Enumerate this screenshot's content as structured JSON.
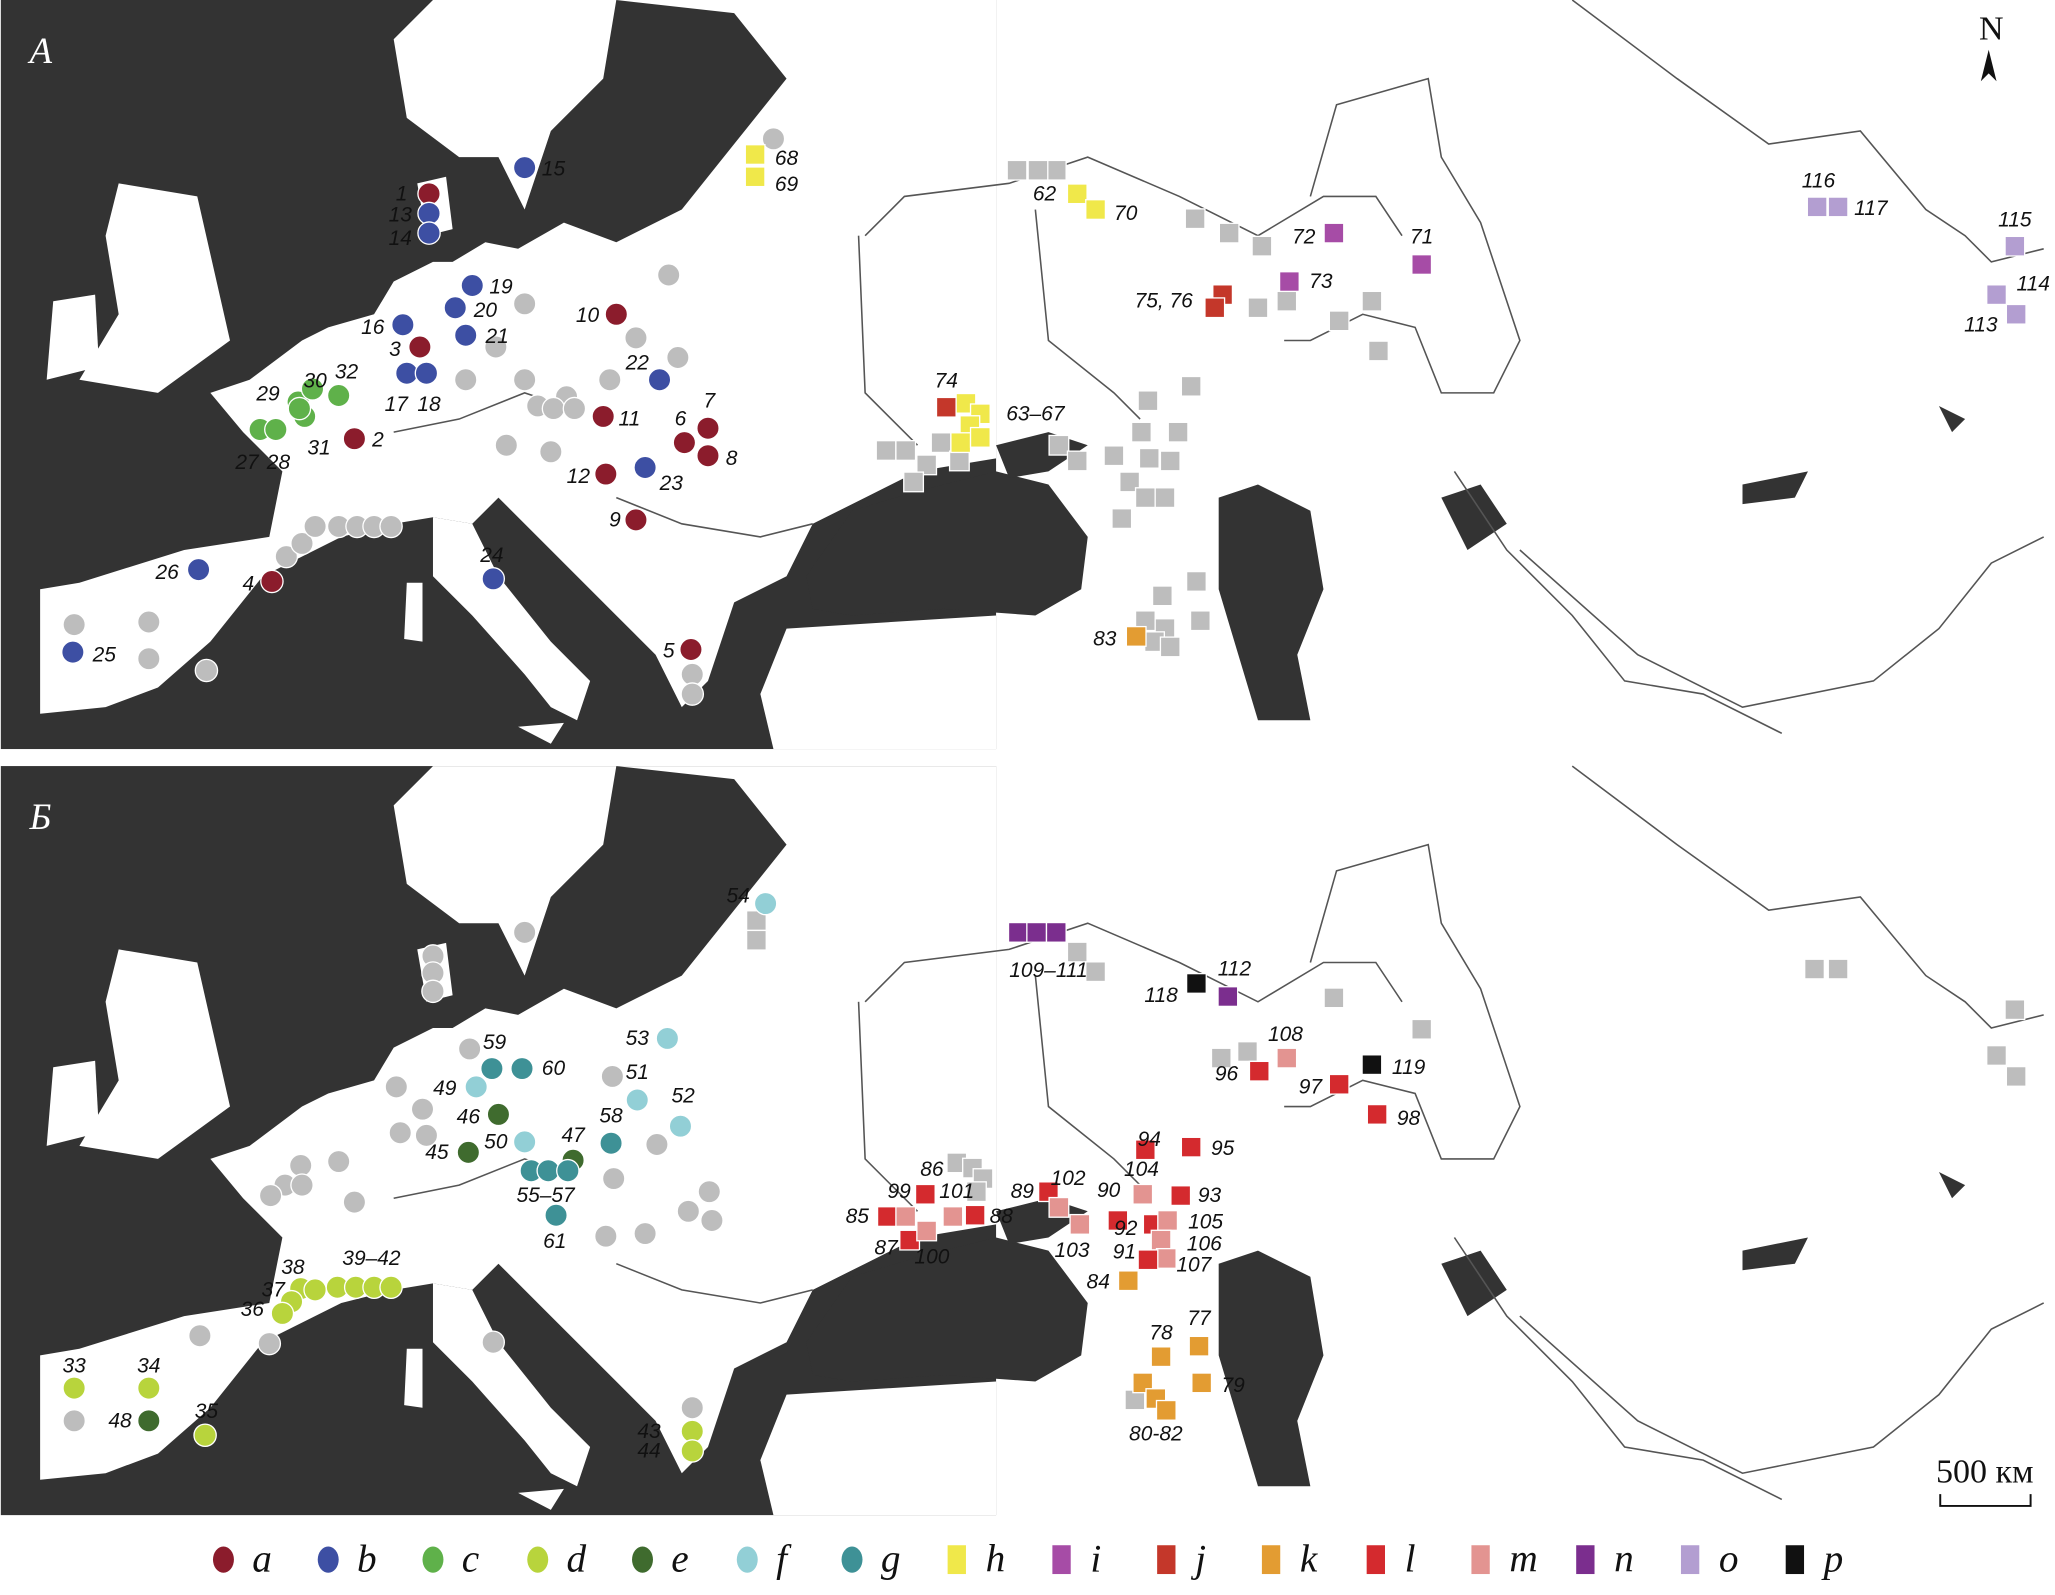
{
  "north_label": "N",
  "scale_label": "500 км",
  "unclassified_color": "#bdbdbd",
  "sea_color": "#333333",
  "legend": [
    {
      "key": "a",
      "shape": "circle",
      "color": "#8b1c2c"
    },
    {
      "key": "b",
      "shape": "circle",
      "color": "#3d4fa3"
    },
    {
      "key": "c",
      "shape": "circle",
      "color": "#5fb14a"
    },
    {
      "key": "d",
      "shape": "circle",
      "color": "#b8d43c"
    },
    {
      "key": "e",
      "shape": "circle",
      "color": "#3f6b2e"
    },
    {
      "key": "f",
      "shape": "circle",
      "color": "#92cfd6"
    },
    {
      "key": "g",
      "shape": "circle",
      "color": "#3e9196"
    },
    {
      "key": "h",
      "shape": "square",
      "color": "#f0e84a"
    },
    {
      "key": "i",
      "shape": "square",
      "color": "#a64ca6"
    },
    {
      "key": "j",
      "shape": "square",
      "color": "#c4372a"
    },
    {
      "key": "k",
      "shape": "square",
      "color": "#e39c32"
    },
    {
      "key": "l",
      "shape": "square",
      "color": "#d42a2e"
    },
    {
      "key": "m",
      "shape": "square",
      "color": "#e39491"
    },
    {
      "key": "n",
      "shape": "square",
      "color": "#7b2e8e"
    },
    {
      "key": "o",
      "shape": "square",
      "color": "#b39ed1"
    },
    {
      "key": "p",
      "shape": "square",
      "color": "#111111"
    }
  ],
  "panels": [
    {
      "letter": "А",
      "sites": [
        {
          "label": "1",
          "category": "a"
        },
        {
          "label": "13",
          "category": "b"
        },
        {
          "label": "14",
          "category": "b"
        },
        {
          "label": "15",
          "category": "b"
        },
        {
          "label": "19",
          "category": "b"
        },
        {
          "label": "20",
          "category": "b"
        },
        {
          "label": "21",
          "category": "b"
        },
        {
          "label": "16",
          "category": "b"
        },
        {
          "label": "3",
          "category": "a"
        },
        {
          "label": "17",
          "category": "b"
        },
        {
          "label": "18",
          "category": "b"
        },
        {
          "label": "29",
          "category": "c"
        },
        {
          "label": "30",
          "category": "c"
        },
        {
          "label": "32",
          "category": "c"
        },
        {
          "label": "27",
          "category": "c"
        },
        {
          "label": "28",
          "category": "c"
        },
        {
          "label": "31",
          "category": "c"
        },
        {
          "label": "2",
          "category": "a"
        },
        {
          "label": "10",
          "category": "a"
        },
        {
          "label": "22",
          "category": "b"
        },
        {
          "label": "11",
          "category": "a"
        },
        {
          "label": "7",
          "category": "a"
        },
        {
          "label": "6",
          "category": "a"
        },
        {
          "label": "8",
          "category": "a"
        },
        {
          "label": "12",
          "category": "a"
        },
        {
          "label": "23",
          "category": "b"
        },
        {
          "label": "9",
          "category": "a"
        },
        {
          "label": "24",
          "category": "b"
        },
        {
          "label": "26",
          "category": "b"
        },
        {
          "label": "4",
          "category": "a"
        },
        {
          "label": "25",
          "category": "b"
        },
        {
          "label": "5",
          "category": "a"
        },
        {
          "label": "68",
          "category": "h"
        },
        {
          "label": "69",
          "category": "h"
        },
        {
          "label": "62",
          "category": "unclassified"
        },
        {
          "label": "70",
          "category": "h"
        },
        {
          "label": "72",
          "category": "i"
        },
        {
          "label": "71",
          "category": "i"
        },
        {
          "label": "73",
          "category": "i"
        },
        {
          "label": "75, 76",
          "category": "j"
        },
        {
          "label": "74",
          "category": "j"
        },
        {
          "label": "63–67",
          "category": "h"
        },
        {
          "label": "83",
          "category": "k"
        },
        {
          "label": "116",
          "category": "o"
        },
        {
          "label": "117",
          "category": "o"
        },
        {
          "label": "115",
          "category": "o"
        },
        {
          "label": "114",
          "category": "o"
        },
        {
          "label": "113",
          "category": "o"
        }
      ]
    },
    {
      "letter": "Б",
      "sites": [
        {
          "label": "54",
          "category": "f"
        },
        {
          "label": "109–111",
          "category": "n"
        },
        {
          "label": "118",
          "category": "p"
        },
        {
          "label": "112",
          "category": "n"
        },
        {
          "label": "108",
          "category": "m"
        },
        {
          "label": "96",
          "category": "l"
        },
        {
          "label": "97",
          "category": "l"
        },
        {
          "label": "119",
          "category": "p"
        },
        {
          "label": "98",
          "category": "l"
        },
        {
          "label": "59",
          "category": "g"
        },
        {
          "label": "60",
          "category": "g"
        },
        {
          "label": "49",
          "category": "f"
        },
        {
          "label": "46",
          "category": "e"
        },
        {
          "label": "53",
          "category": "f"
        },
        {
          "label": "51",
          "category": "f"
        },
        {
          "label": "52",
          "category": "f"
        },
        {
          "label": "58",
          "category": "g"
        },
        {
          "label": "45",
          "category": "e"
        },
        {
          "label": "50",
          "category": "f"
        },
        {
          "label": "47",
          "category": "e"
        },
        {
          "label": "55–57",
          "category": "g"
        },
        {
          "label": "61",
          "category": "g"
        },
        {
          "label": "38",
          "category": "d"
        },
        {
          "label": "39–42",
          "category": "d"
        },
        {
          "label": "37",
          "category": "d"
        },
        {
          "label": "36",
          "category": "d"
        },
        {
          "label": "33",
          "category": "d"
        },
        {
          "label": "34",
          "category": "d"
        },
        {
          "label": "48",
          "category": "e"
        },
        {
          "label": "35",
          "category": "d"
        },
        {
          "label": "43",
          "category": "d"
        },
        {
          "label": "44",
          "category": "d"
        },
        {
          "label": "86",
          "category": "unclassified"
        },
        {
          "label": "99",
          "category": "l"
        },
        {
          "label": "101",
          "category": "m"
        },
        {
          "label": "85",
          "category": "l"
        },
        {
          "label": "87",
          "category": "l"
        },
        {
          "label": "88",
          "category": "l"
        },
        {
          "label": "100",
          "category": "m"
        },
        {
          "label": "89",
          "category": "l"
        },
        {
          "label": "102",
          "category": "m"
        },
        {
          "label": "103",
          "category": "m"
        },
        {
          "label": "90",
          "category": "m"
        },
        {
          "label": "92",
          "category": "l"
        },
        {
          "label": "104",
          "category": "l"
        },
        {
          "label": "94",
          "category": "l"
        },
        {
          "label": "95",
          "category": "l"
        },
        {
          "label": "93",
          "category": "l"
        },
        {
          "label": "105",
          "category": "m"
        },
        {
          "label": "106",
          "category": "m"
        },
        {
          "label": "107",
          "category": "m"
        },
        {
          "label": "91",
          "category": "l"
        },
        {
          "label": "84",
          "category": "k"
        },
        {
          "label": "77",
          "category": "k"
        },
        {
          "label": "78",
          "category": "k"
        },
        {
          "label": "79",
          "category": "k"
        },
        {
          "label": "80-82",
          "category": "k"
        }
      ]
    }
  ]
}
